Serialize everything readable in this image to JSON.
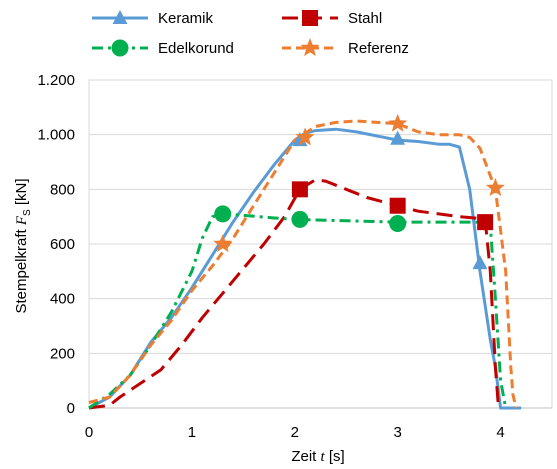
{
  "chart_data": {
    "type": "line",
    "title": "",
    "xlabel_prefix": "Zeit ",
    "xlabel_var": "t",
    "xlabel_unit": " [s]",
    "ylabel_prefix": "Stempelkraft ",
    "ylabel_var": "F",
    "ylabel_sub": "S",
    "ylabel_unit": " [kN]",
    "xlim": [
      0,
      4.5
    ],
    "ylim": [
      0,
      1200
    ],
    "x_ticks": [
      0,
      1,
      2,
      3,
      4
    ],
    "x_tick_labels": [
      "0",
      "1",
      "2",
      "3",
      "4"
    ],
    "y_ticks": [
      0,
      200,
      400,
      600,
      800,
      1000,
      1200
    ],
    "y_tick_labels": [
      "0",
      "200",
      "400",
      "600",
      "800",
      "1.000",
      "1.200"
    ],
    "legend_position": "top",
    "grid": "horizontal",
    "series": [
      {
        "name": "Keramik",
        "color": "#5b9bd5",
        "dash": "solid",
        "marker": "triangle",
        "x": [
          0,
          0.1,
          0.2,
          0.4,
          0.6,
          0.8,
          1.0,
          1.2,
          1.4,
          1.6,
          1.8,
          2.0,
          2.1,
          2.2,
          2.4,
          2.6,
          2.8,
          3.0,
          3.2,
          3.4,
          3.5,
          3.6,
          3.7,
          3.8,
          3.9,
          3.95,
          4.0,
          4.05,
          4.2
        ],
        "y": [
          0,
          20,
          40,
          120,
          240,
          330,
          440,
          560,
          680,
          790,
          890,
          980,
          1005,
          1015,
          1020,
          1010,
          995,
          980,
          975,
          965,
          965,
          955,
          800,
          500,
          250,
          150,
          0,
          0,
          0
        ],
        "marker_x": [
          2.05,
          3.0,
          3.8
        ],
        "marker_y": [
          980,
          985,
          530
        ]
      },
      {
        "name": "Stahl",
        "color": "#c00000",
        "dash": "longdash",
        "marker": "square",
        "x": [
          0,
          0.2,
          0.3,
          0.5,
          0.7,
          0.9,
          1.1,
          1.3,
          1.5,
          1.7,
          1.9,
          2.05,
          2.2,
          2.3,
          2.5,
          2.7,
          3.0,
          3.2,
          3.4,
          3.6,
          3.75,
          3.85,
          3.9,
          3.95,
          3.98
        ],
        "y": [
          0,
          10,
          40,
          90,
          140,
          230,
          330,
          420,
          510,
          600,
          700,
          800,
          835,
          830,
          800,
          770,
          740,
          720,
          710,
          700,
          695,
          690,
          500,
          150,
          0
        ],
        "marker_x": [
          2.05,
          3.0,
          3.85
        ],
        "marker_y": [
          800,
          740,
          680
        ]
      },
      {
        "name": "Edelkorund",
        "color": "#00b050",
        "dash": "dashdot",
        "marker": "circle",
        "x": [
          0,
          0.2,
          0.4,
          0.6,
          0.8,
          1.0,
          1.1,
          1.2,
          1.3,
          1.5,
          1.8,
          2.0,
          2.5,
          3.0,
          3.5,
          3.8,
          3.9,
          3.95,
          4.0,
          4.05
        ],
        "y": [
          0,
          50,
          120,
          230,
          350,
          500,
          620,
          700,
          710,
          705,
          695,
          690,
          685,
          680,
          680,
          680,
          670,
          400,
          100,
          0
        ],
        "marker_x": [
          1.3,
          2.05,
          3.0
        ],
        "marker_y": [
          710,
          690,
          675
        ]
      },
      {
        "name": "Referenz",
        "color": "#ed7d31",
        "dash": "dash",
        "marker": "star",
        "x": [
          0,
          0.2,
          0.4,
          0.6,
          0.8,
          1.0,
          1.2,
          1.4,
          1.6,
          1.8,
          2.0,
          2.2,
          2.4,
          2.6,
          2.8,
          3.0,
          3.2,
          3.4,
          3.6,
          3.7,
          3.8,
          3.9,
          3.95,
          4.05,
          4.1,
          4.12,
          4.15
        ],
        "y": [
          20,
          40,
          120,
          230,
          320,
          430,
          520,
          620,
          740,
          860,
          980,
          1030,
          1045,
          1050,
          1045,
          1040,
          1010,
          1000,
          1000,
          990,
          950,
          850,
          800,
          500,
          150,
          50,
          0
        ],
        "marker_x": [
          1.3,
          2.1,
          3.0,
          3.95
        ],
        "marker_y": [
          600,
          990,
          1040,
          805
        ]
      }
    ]
  }
}
